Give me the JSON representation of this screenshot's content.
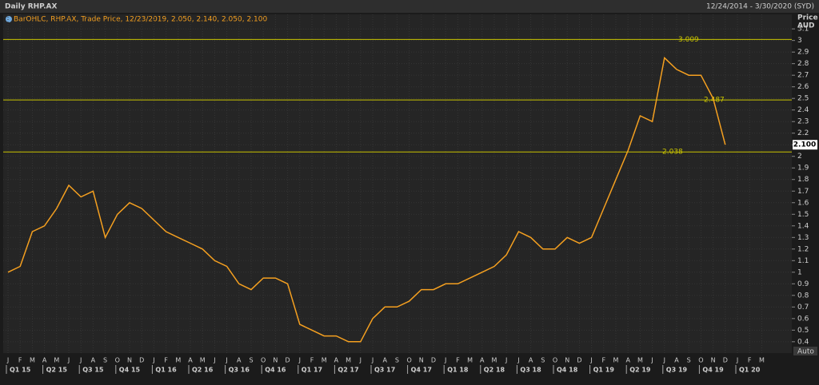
{
  "header": {
    "title": "Daily RHP.AX",
    "range": "12/24/2014 - 3/30/2020 (SYD)"
  },
  "chart_data": {
    "type": "line",
    "legend": "BarOHLC, RHP.AX, Trade Price, 12/23/2019, 2.050, 2.140, 2.050, 2.100",
    "y_axis_title": "Price",
    "y_axis_unit": "AUD",
    "auto_label": "Auto",
    "color": "#f5a020",
    "level_color": "#c9c400",
    "grid": true,
    "categories": [
      "J",
      "F",
      "M",
      "A",
      "M",
      "J",
      "J",
      "A",
      "S",
      "O",
      "N",
      "D",
      "J",
      "F",
      "M",
      "A",
      "M",
      "J",
      "J",
      "A",
      "S",
      "O",
      "N",
      "D",
      "J",
      "F",
      "M",
      "A",
      "M",
      "J",
      "J",
      "A",
      "S",
      "O",
      "N",
      "D",
      "J",
      "F",
      "M",
      "A",
      "M",
      "J",
      "J",
      "A",
      "S",
      "O",
      "N",
      "D",
      "J",
      "F",
      "M",
      "A",
      "M",
      "J",
      "J",
      "A",
      "S",
      "O",
      "N",
      "D",
      "J",
      "F",
      "M"
    ],
    "quarters": [
      "Q1 15",
      "Q2 15",
      "Q3 15",
      "Q4 15",
      "Q1 16",
      "Q2 16",
      "Q3 16",
      "Q4 16",
      "Q1 17",
      "Q2 17",
      "Q3 17",
      "Q4 17",
      "Q1 18",
      "Q2 18",
      "Q3 18",
      "Q4 18",
      "Q1 19",
      "Q2 19",
      "Q3 19",
      "Q4 19",
      "Q1 20"
    ],
    "values": [
      1.0,
      1.05,
      1.35,
      1.4,
      1.55,
      1.75,
      1.65,
      1.7,
      1.3,
      1.5,
      1.6,
      1.55,
      1.45,
      1.35,
      1.3,
      1.25,
      1.2,
      1.1,
      1.05,
      0.9,
      0.85,
      0.95,
      0.95,
      0.9,
      0.55,
      0.5,
      0.45,
      0.45,
      0.4,
      0.4,
      0.6,
      0.7,
      0.7,
      0.75,
      0.85,
      0.85,
      0.9,
      0.9,
      0.95,
      1.0,
      1.05,
      1.15,
      1.35,
      1.3,
      1.2,
      1.2,
      1.3,
      1.25,
      1.3,
      1.55,
      1.8,
      2.05,
      2.35,
      2.3,
      2.85,
      2.75,
      2.7,
      2.7,
      2.5,
      2.1,
      null,
      null,
      null
    ],
    "levels": [
      3.009,
      2.487,
      2.038
    ],
    "last_price": {
      "value": 2.1,
      "label": "2.100"
    },
    "ylim": [
      0.33,
      3.17
    ],
    "yticks": [
      0.4,
      0.5,
      0.6,
      0.7,
      0.8,
      0.9,
      1,
      1.1,
      1.2,
      1.3,
      1.4,
      1.5,
      1.6,
      1.7,
      1.8,
      1.9,
      2,
      2.1,
      2.2,
      2.3,
      2.4,
      2.5,
      2.6,
      2.7,
      2.8,
      2.9,
      3,
      3.1
    ]
  }
}
